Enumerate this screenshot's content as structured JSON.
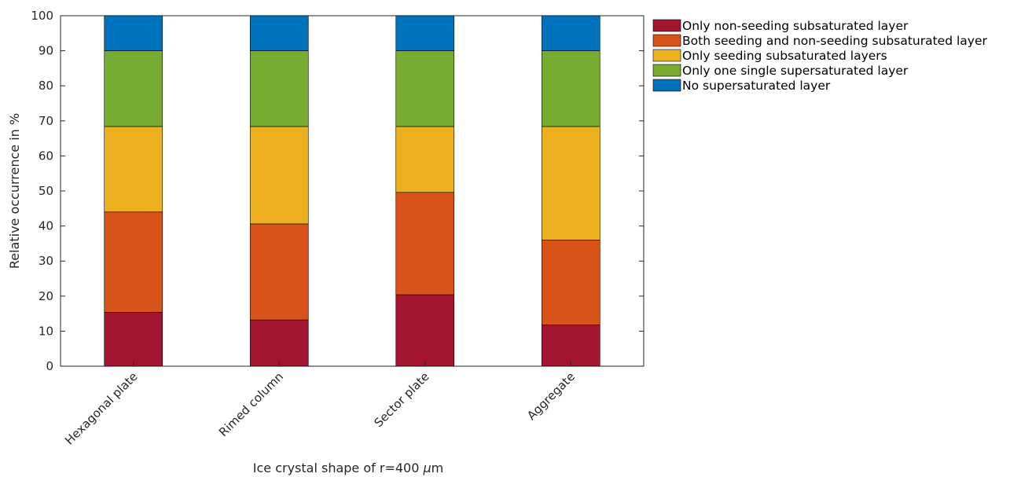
{
  "chart_data": {
    "type": "bar",
    "stacked": true,
    "categories": [
      "Hexagonal plate",
      "Rimed column",
      "Sector plate",
      "Aggregate"
    ],
    "series": [
      {
        "name": "Only non-seeding subsaturated layer",
        "color": "#A2142F",
        "values": [
          15.4,
          13.2,
          20.4,
          11.8
        ]
      },
      {
        "name": "Both seeding and non-seeding subsaturated layer",
        "color": "#D95319",
        "values": [
          28.6,
          27.4,
          29.2,
          24.2
        ]
      },
      {
        "name": "Only seeding subsaturated layers",
        "color": "#EDB120",
        "values": [
          24.4,
          27.8,
          18.8,
          32.4
        ]
      },
      {
        "name": "Only one single supersaturated layer",
        "color": "#77AC30",
        "values": [
          21.6,
          21.6,
          21.6,
          21.6
        ]
      },
      {
        "name": "No supersaturated layer",
        "color": "#0072BD",
        "values": [
          10.0,
          10.0,
          10.0,
          10.0
        ]
      }
    ],
    "ylim": [
      0,
      100
    ],
    "yticks": [
      "0",
      "10",
      "20",
      "30",
      "40",
      "50",
      "60",
      "70",
      "80",
      "90",
      "100"
    ],
    "xlabel_prefix": "Ice crystal shape of r=400 ",
    "xlabel_unit_symbol": "μ",
    "xlabel_unit": "m",
    "ylabel": "Relative occurrence in %",
    "legend_position": "outside-top-right",
    "grid": false
  }
}
